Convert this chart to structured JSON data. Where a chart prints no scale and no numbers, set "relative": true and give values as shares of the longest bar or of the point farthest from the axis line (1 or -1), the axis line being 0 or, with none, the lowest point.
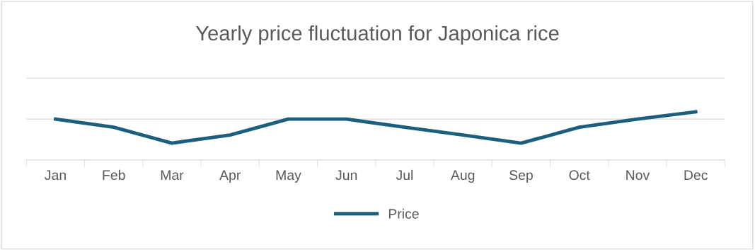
{
  "chart_data": {
    "type": "line",
    "title": "Yearly price fluctuation for Japonica rice",
    "categories": [
      "Jan",
      "Feb",
      "Mar",
      "Apr",
      "May",
      "Jun",
      "Jul",
      "Aug",
      "Sep",
      "Oct",
      "Nov",
      "Dec"
    ],
    "series": [
      {
        "name": "Price",
        "color": "#1b5e7e",
        "values": [
          0.85,
          0.68,
          0.35,
          0.52,
          0.85,
          0.85,
          0.68,
          0.52,
          0.35,
          0.68,
          0.85,
          1
        ]
      }
    ],
    "relative": true,
    "ref_lines": [
      {
        "axis": "y",
        "value": 0.85,
        "color": "#d9d9d9"
      },
      {
        "axis": "y",
        "value": 1.7,
        "color": "#d9d9d9"
      }
    ],
    "legend": "bottom",
    "marker": "none",
    "line_style": "solid"
  }
}
